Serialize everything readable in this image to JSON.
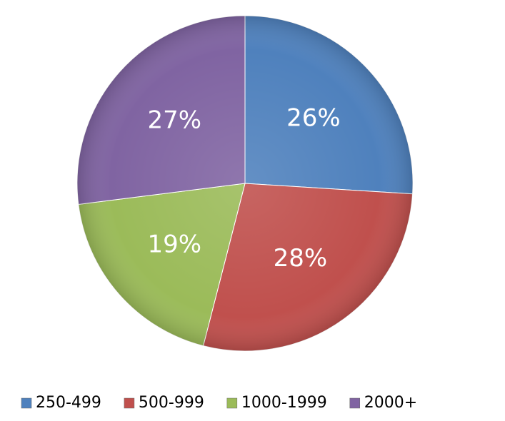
{
  "chart_data": {
    "type": "pie",
    "categories": [
      "250-499",
      "500-999",
      "1000-1999",
      "2000+"
    ],
    "values": [
      26,
      28,
      19,
      27
    ],
    "value_labels": [
      "26%",
      "28%",
      "19%",
      "27%"
    ],
    "colors": [
      "#4f81bd",
      "#c0504d",
      "#9bbb59",
      "#8064a2"
    ],
    "legend": "bottom"
  }
}
